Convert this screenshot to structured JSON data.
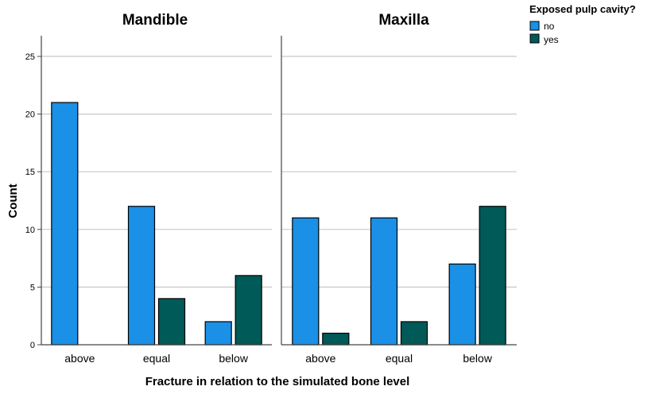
{
  "chart_data": {
    "type": "bar",
    "ylabel": "Count",
    "xlabel": "Fracture in relation to the simulated bone level",
    "ylim": [
      0,
      25
    ],
    "yticks": [
      "0",
      "5",
      "10",
      "15",
      "20",
      "25"
    ],
    "categories": [
      "above",
      "equal",
      "below"
    ],
    "grid": true,
    "legend": {
      "title": "Exposed pulp cavity?",
      "position": "top-right",
      "items": [
        {
          "label": "no",
          "color": "#1a90e6"
        },
        {
          "label": "yes",
          "color": "#005a58"
        }
      ]
    },
    "panels": [
      {
        "title": "Mandible",
        "series": [
          {
            "name": "no",
            "values": [
              21,
              12,
              2
            ]
          },
          {
            "name": "yes",
            "values": [
              0,
              4,
              6
            ]
          }
        ]
      },
      {
        "title": "Maxilla",
        "series": [
          {
            "name": "no",
            "values": [
              11,
              11,
              7
            ]
          },
          {
            "name": "yes",
            "values": [
              1,
              2,
              12
            ]
          }
        ]
      }
    ]
  }
}
